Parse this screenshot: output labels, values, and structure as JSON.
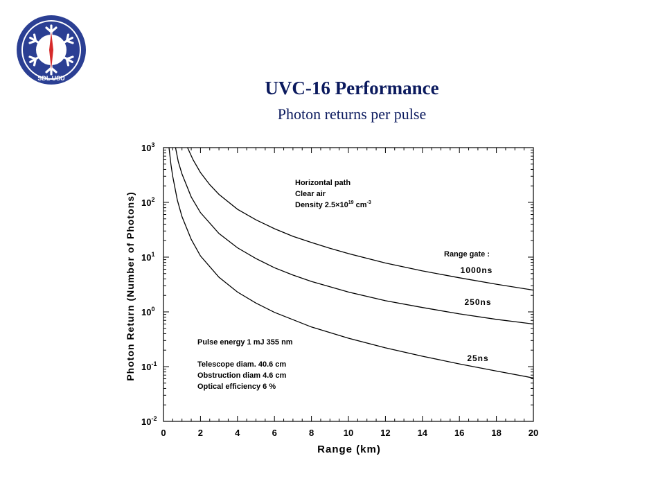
{
  "title": "UVC-16  Performance",
  "subtitle": "Photon returns per pulse",
  "logo": {
    "text": "SDL USU",
    "colors": {
      "ring": "#2b3f93",
      "snow": "#ffffff",
      "needle": "#d62a2a"
    }
  },
  "chart_data": {
    "type": "line",
    "xlabel": "Range (km)",
    "ylabel": "Photon Return (Number of Photons)",
    "xlim": [
      0,
      20
    ],
    "ylim": [
      0.01,
      1000
    ],
    "yscale": "log",
    "xticks": [
      0,
      2,
      4,
      6,
      8,
      10,
      12,
      14,
      16,
      18,
      20
    ],
    "yticks": [
      {
        "value": 1000,
        "base": "10",
        "exp": "3"
      },
      {
        "value": 100,
        "base": "10",
        "exp": "2"
      },
      {
        "value": 10,
        "base": "10",
        "exp": "1"
      },
      {
        "value": 1,
        "base": "10",
        "exp": "0"
      },
      {
        "value": 0.1,
        "base": "10",
        "exp": "-1"
      },
      {
        "value": 0.01,
        "base": "10",
        "exp": "-2"
      }
    ],
    "series": [
      {
        "name": "1000ns",
        "x": [
          1.3,
          1.6,
          2,
          2.5,
          3,
          4,
          5,
          6,
          7,
          8,
          9,
          10,
          12,
          14,
          16,
          18,
          20
        ],
        "values": [
          1000,
          600,
          350,
          210,
          140,
          75,
          48,
          33,
          24,
          18.5,
          14.5,
          11.6,
          7.8,
          5.6,
          4.2,
          3.2,
          2.5
        ]
      },
      {
        "name": "250ns",
        "x": [
          0.65,
          0.8,
          1,
          1.5,
          2,
          3,
          4,
          5,
          6,
          7,
          8,
          10,
          12,
          14,
          16,
          18,
          20
        ],
        "values": [
          1000,
          550,
          330,
          125,
          65,
          27,
          14.8,
          9.4,
          6.4,
          4.7,
          3.6,
          2.3,
          1.6,
          1.2,
          0.92,
          0.73,
          0.6
        ]
      },
      {
        "name": "25ns",
        "x": [
          0.3,
          0.4,
          0.5,
          0.75,
          1,
          1.5,
          2,
          3,
          4,
          5,
          6,
          8,
          10,
          12,
          14,
          16,
          18,
          20
        ],
        "values": [
          1000,
          500,
          300,
          110,
          55,
          21,
          10.5,
          4.3,
          2.3,
          1.45,
          0.98,
          0.53,
          0.33,
          0.22,
          0.155,
          0.112,
          0.083,
          0.062
        ]
      }
    ],
    "annotations": {
      "env": [
        "Horizontal path",
        "Clear air"
      ],
      "density_prefix": "Density  2.5",
      "density_times": "×",
      "density_base": "10",
      "density_exp": "19",
      "density_unit": " cm",
      "density_unit_exp": "-3",
      "range_gate": "Range gate :",
      "pulse": "Pulse energy 1 mJ   355 nm",
      "instrument": [
        "Telescope diam. 40.6 cm",
        "Obstruction diam 4.6 cm",
        "Optical efficiency 6 %"
      ]
    },
    "grid": false,
    "legend": "inline labels at right"
  }
}
